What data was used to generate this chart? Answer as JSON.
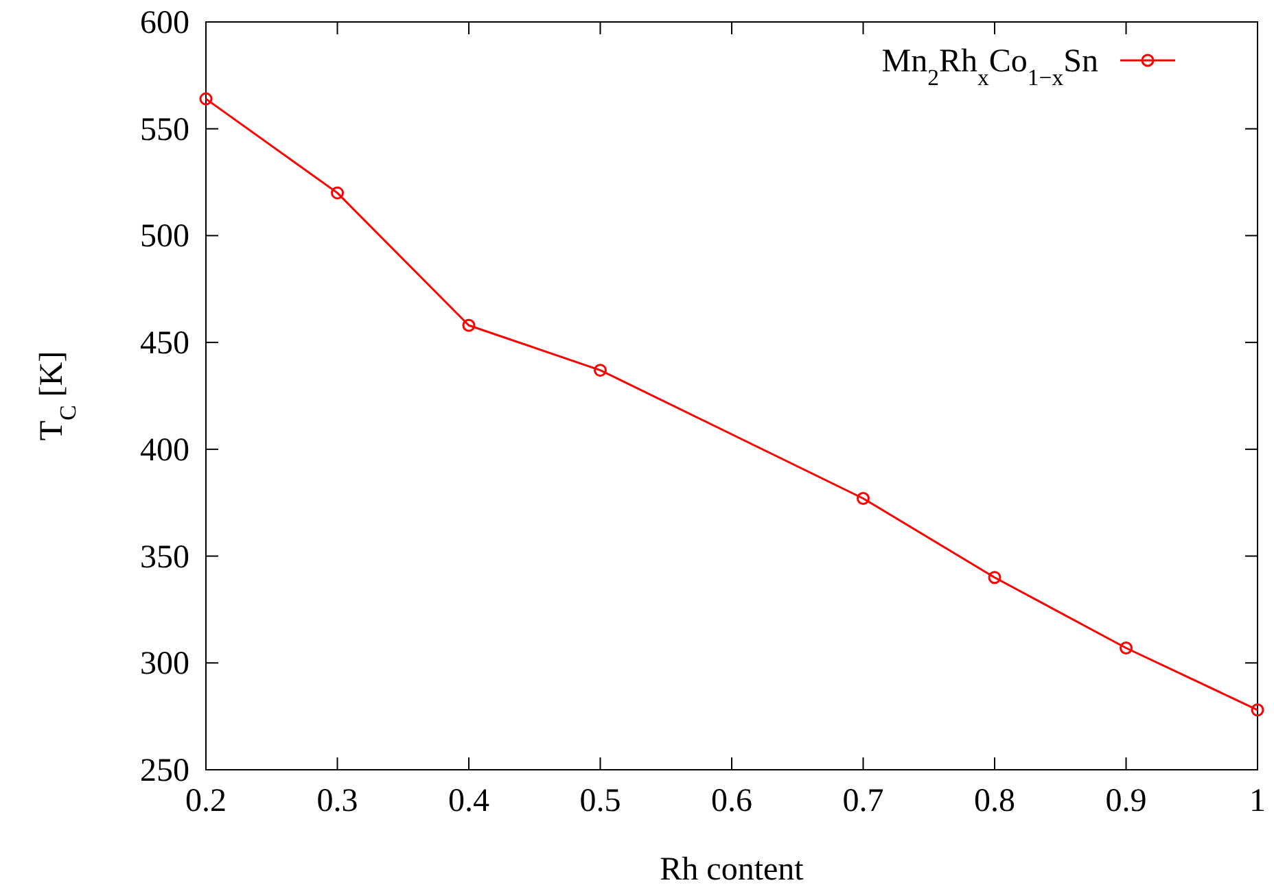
{
  "chart_data": {
    "type": "line",
    "xlabel": "Rh content",
    "ylabel": "T$_{C}$ [K]",
    "x": [
      0.2,
      0.3,
      0.4,
      0.5,
      0.7,
      0.8,
      0.9,
      1.0
    ],
    "series": [
      {
        "name": "Mn$_{2}$Rh$_{x}$Co$_{1−x}$Sn",
        "color": "#ff0000",
        "values": [
          564,
          520,
          458,
          437,
          377,
          340,
          307,
          278
        ]
      }
    ],
    "xlim": [
      0.2,
      1
    ],
    "xticks": [
      0.2,
      0.3,
      0.4,
      0.5,
      0.6,
      0.7,
      0.8,
      0.9,
      1
    ],
    "ylim": [
      250,
      600
    ],
    "yticks": [
      250,
      300,
      350,
      400,
      450,
      500,
      550,
      600
    ],
    "grid": false,
    "legend": "top right",
    "marker": "circle",
    "line_style": "solid"
  }
}
